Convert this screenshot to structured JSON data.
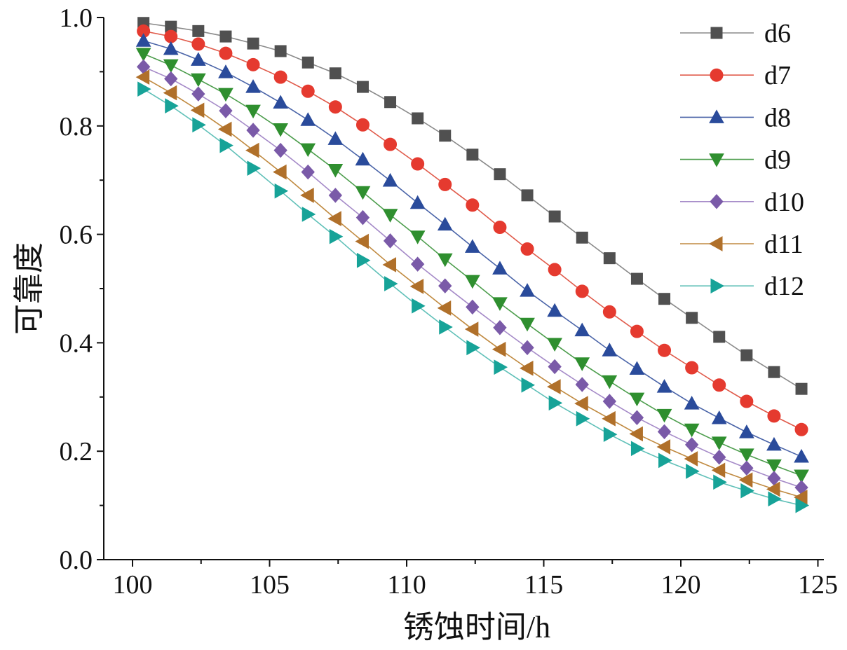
{
  "chart_data": {
    "type": "line",
    "title": "",
    "xlabel": "锈蚀时间/h",
    "ylabel": "可靠度",
    "xlim": [
      99,
      125.5
    ],
    "ylim": [
      0,
      1.0
    ],
    "xticks": [
      "100",
      "105",
      "110",
      "115",
      "120",
      "125"
    ],
    "yticks": [
      "0.0",
      "0.2",
      "0.4",
      "0.6",
      "0.8",
      "1.0"
    ],
    "grid": false,
    "legend_position": "top-right",
    "x": [
      100.4,
      101.4,
      102.4,
      103.4,
      104.4,
      105.4,
      106.4,
      107.4,
      108.4,
      109.4,
      110.4,
      111.4,
      112.4,
      113.4,
      114.4,
      115.4,
      116.4,
      117.4,
      118.4,
      119.4,
      120.4,
      121.4,
      122.4,
      123.4,
      124.4
    ],
    "series": [
      {
        "name": "d6",
        "marker": "square",
        "color": "#505050",
        "line_color": "#8a8a8a",
        "values": [
          0.99,
          0.983,
          0.975,
          0.965,
          0.952,
          0.938,
          0.917,
          0.897,
          0.872,
          0.844,
          0.814,
          0.782,
          0.747,
          0.711,
          0.672,
          0.633,
          0.594,
          0.556,
          0.518,
          0.481,
          0.446,
          0.411,
          0.377,
          0.346,
          0.315
        ]
      },
      {
        "name": "d7",
        "marker": "circle",
        "color": "#e53a2f",
        "line_color": "#e05a4a",
        "values": [
          0.975,
          0.965,
          0.951,
          0.934,
          0.913,
          0.89,
          0.864,
          0.835,
          0.802,
          0.766,
          0.73,
          0.692,
          0.654,
          0.613,
          0.573,
          0.535,
          0.495,
          0.457,
          0.421,
          0.386,
          0.354,
          0.322,
          0.292,
          0.265,
          0.24
        ]
      },
      {
        "name": "d8",
        "marker": "triangle-up",
        "color": "#2a4b9b",
        "line_color": "#4a64a8",
        "values": [
          0.957,
          0.942,
          0.922,
          0.899,
          0.872,
          0.843,
          0.811,
          0.776,
          0.738,
          0.699,
          0.658,
          0.618,
          0.577,
          0.537,
          0.496,
          0.459,
          0.423,
          0.386,
          0.352,
          0.319,
          0.288,
          0.261,
          0.235,
          0.212,
          0.19
        ]
      },
      {
        "name": "d9",
        "marker": "triangle-down",
        "color": "#2f8f2f",
        "line_color": "#4e9e4e",
        "values": [
          0.933,
          0.912,
          0.886,
          0.859,
          0.828,
          0.794,
          0.757,
          0.719,
          0.678,
          0.636,
          0.596,
          0.554,
          0.514,
          0.473,
          0.435,
          0.398,
          0.362,
          0.329,
          0.297,
          0.267,
          0.24,
          0.216,
          0.194,
          0.174,
          0.155
        ]
      },
      {
        "name": "d10",
        "marker": "diamond",
        "color": "#7a5aa8",
        "line_color": "#a58ac8",
        "values": [
          0.909,
          0.887,
          0.859,
          0.828,
          0.792,
          0.755,
          0.715,
          0.672,
          0.631,
          0.588,
          0.545,
          0.505,
          0.466,
          0.428,
          0.391,
          0.356,
          0.323,
          0.292,
          0.262,
          0.236,
          0.212,
          0.189,
          0.169,
          0.15,
          0.133
        ]
      },
      {
        "name": "d11",
        "marker": "triangle-left",
        "color": "#b0702a",
        "line_color": "#c08a40",
        "values": [
          0.89,
          0.861,
          0.829,
          0.794,
          0.755,
          0.715,
          0.672,
          0.629,
          0.587,
          0.544,
          0.504,
          0.464,
          0.425,
          0.388,
          0.353,
          0.319,
          0.288,
          0.26,
          0.232,
          0.208,
          0.186,
          0.165,
          0.147,
          0.13,
          0.115
        ]
      },
      {
        "name": "d12",
        "marker": "triangle-right",
        "color": "#17a398",
        "line_color": "#60c0b8",
        "values": [
          0.868,
          0.837,
          0.802,
          0.764,
          0.722,
          0.68,
          0.637,
          0.596,
          0.552,
          0.509,
          0.468,
          0.429,
          0.391,
          0.355,
          0.322,
          0.289,
          0.26,
          0.231,
          0.205,
          0.183,
          0.163,
          0.143,
          0.127,
          0.112,
          0.1
        ]
      }
    ]
  }
}
